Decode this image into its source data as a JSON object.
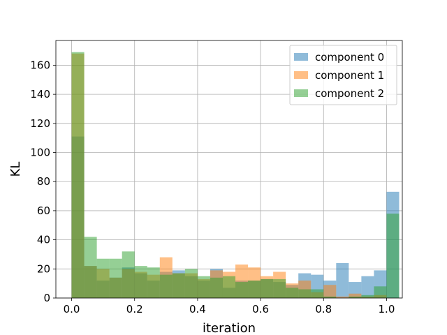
{
  "chart_data": {
    "type": "bar",
    "subtype": "histogram-overlay",
    "title": "",
    "xlabel": "iteration",
    "ylabel": "KL",
    "xlim": [
      -0.05,
      1.05
    ],
    "ylim": [
      0,
      177
    ],
    "xticks": [
      0.0,
      0.2,
      0.4,
      0.6,
      0.8,
      1.0
    ],
    "xtick_labels": [
      "0.0",
      "0.2",
      "0.4",
      "0.6",
      "0.8",
      "1.0"
    ],
    "yticks": [
      0,
      20,
      40,
      60,
      80,
      100,
      120,
      140,
      160
    ],
    "ytick_labels": [
      "0",
      "20",
      "40",
      "60",
      "80",
      "100",
      "120",
      "140",
      "160"
    ],
    "grid": true,
    "legend_position": "top-right",
    "bin_start": 0.0,
    "bin_width": 0.04,
    "series": [
      {
        "name": "component 0",
        "color": "#1f77b4",
        "opacity": 0.5,
        "values": [
          111,
          22,
          12,
          14,
          21,
          17,
          12,
          18,
          19,
          15,
          12,
          20,
          7,
          12,
          12,
          13,
          11,
          9,
          17,
          16,
          12,
          24,
          11,
          15,
          19,
          73
        ]
      },
      {
        "name": "component 1",
        "color": "#ff7f0e",
        "opacity": 0.5,
        "values": [
          168,
          22,
          20,
          14,
          20,
          18,
          16,
          28,
          17,
          17,
          13,
          19,
          18,
          23,
          21,
          15,
          18,
          10,
          12,
          4,
          9,
          1,
          3,
          1,
          2,
          0
        ]
      },
      {
        "name": "component 2",
        "color": "#2ca02c",
        "opacity": 0.5,
        "values": [
          169,
          42,
          27,
          27,
          32,
          22,
          21,
          16,
          17,
          20,
          15,
          14,
          15,
          11,
          12,
          13,
          13,
          7,
          6,
          6,
          1,
          0,
          1,
          2,
          8,
          58
        ]
      }
    ]
  }
}
